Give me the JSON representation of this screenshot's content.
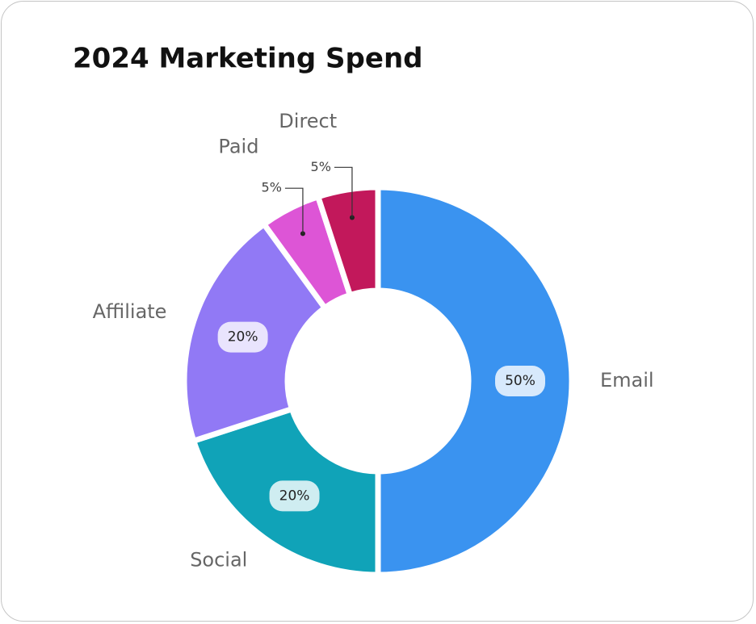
{
  "chart_data": {
    "type": "donut",
    "title": "2024 Marketing Spend",
    "categories": [
      "Email",
      "Social",
      "Affiliate",
      "Paid",
      "Direct"
    ],
    "values": [
      50,
      20,
      20,
      5,
      5
    ],
    "value_labels": [
      "50%",
      "20%",
      "20%",
      "5%",
      "5%"
    ],
    "colors": [
      "#3a93f0",
      "#10a3b8",
      "#9179f5",
      "#dd55d6",
      "#c2185b"
    ]
  }
}
